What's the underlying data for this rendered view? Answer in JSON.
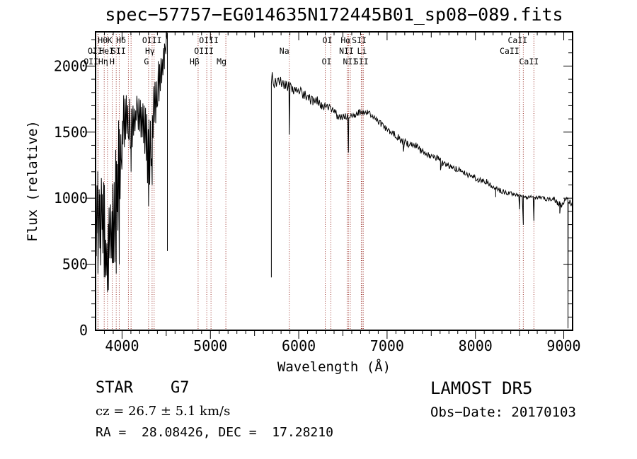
{
  "title": "spec−57757−EG014635N172445B01_sp08−089.fits",
  "colors": {
    "curve": "#000000",
    "axis": "#000000",
    "line_marker": "#9a2f28",
    "background": "#ffffff"
  },
  "footer": {
    "object_type": "STAR    G7",
    "velocity": "cz = 26.7 ± 5.1 km/s",
    "coords": "RA =  28.08426, DEC =  17.28210",
    "survey": "LAMOST DR5",
    "obs_date": "Obs−Date: 20170103"
  },
  "chart_data": {
    "type": "line",
    "title": "spec−57757−EG014635N172445B01_sp08−089.fits",
    "xlabel": "Wavelength (Å)",
    "ylabel": "Flux (relative)",
    "xlim": [
      3700,
      9100
    ],
    "ylim": [
      0,
      2259
    ],
    "xticks": [
      4000,
      5000,
      6000,
      7000,
      8000,
      9000
    ],
    "yticks": [
      0,
      500,
      1000,
      1500,
      2000
    ],
    "minor_x_step": 100,
    "minor_y_step": 100,
    "grid": false,
    "legend": false,
    "spectral_lines": [
      {
        "label": "Hθ",
        "row": 1,
        "wavelength": 3798,
        "dx": -2
      },
      {
        "label": "K",
        "row": 1,
        "wavelength": 3934,
        "dx": -9
      },
      {
        "label": "Hδ",
        "row": 1,
        "wavelength": 4102,
        "dx": -14
      },
      {
        "label": "OIII",
        "row": 1,
        "wavelength": 4363,
        "dx": -3
      },
      {
        "label": "OIII",
        "row": 1,
        "wavelength": 5007,
        "dx": -3
      },
      {
        "label": "OI",
        "row": 1,
        "wavelength": 6364,
        "dx": -5
      },
      {
        "label": "Hα",
        "row": 1,
        "wavelength": 6563,
        "dx": -4
      },
      {
        "label": "SII",
        "row": 1,
        "wavelength": 6717,
        "dx": -4
      },
      {
        "label": "CaII",
        "row": 1,
        "wavelength": 8542,
        "dx": -8
      },
      {
        "label": "OII",
        "row": 2,
        "wavelength": 3727,
        "dx": -4
      },
      {
        "label": "HeI",
        "row": 2,
        "wavelength": 3889,
        "dx": -8
      },
      {
        "label": "SII",
        "row": 2,
        "wavelength": 4072,
        "dx": -14
      },
      {
        "label": "Hγ",
        "row": 2,
        "wavelength": 4340,
        "dx": -3
      },
      {
        "label": "OIII",
        "row": 2,
        "wavelength": 4959,
        "dx": -4
      },
      {
        "label": "Na",
        "row": 2,
        "wavelength": 5893,
        "dx": -7
      },
      {
        "label": "NII",
        "row": 2,
        "wavelength": 6548,
        "dx": -1
      },
      {
        "label": "Li",
        "row": 2,
        "wavelength": 6708,
        "dx": 1
      },
      {
        "label": "CaII",
        "row": 2,
        "wavelength": 8498,
        "dx": -14
      },
      {
        "label": "OII",
        "row": 3,
        "wavelength": 3729,
        "dx": -10
      },
      {
        "label": "Hη",
        "row": 3,
        "wavelength": 3835,
        "dx": -6
      },
      {
        "label": "H",
        "row": 3,
        "wavelength": 3968,
        "dx": -10
      },
      {
        "label": "G",
        "row": 3,
        "wavelength": 4300,
        "dx": -3
      },
      {
        "label": "Hβ",
        "row": 3,
        "wavelength": 4861,
        "dx": -5
      },
      {
        "label": "Mg",
        "row": 3,
        "wavelength": 5175,
        "dx": -6
      },
      {
        "label": "OI",
        "row": 3,
        "wavelength": 6300,
        "dx": 2
      },
      {
        "label": "NII",
        "row": 3,
        "wavelength": 6583,
        "dx": 0
      },
      {
        "label": "SII",
        "row": 3,
        "wavelength": 6731,
        "dx": -3
      },
      {
        "label": "CaII",
        "row": 3,
        "wavelength": 8662,
        "dx": -7
      }
    ],
    "segments": [
      {
        "name": "blue-arm",
        "step": 8,
        "anchors": [
          [
            3700,
            850,
            400
          ],
          [
            3725,
            900,
            380
          ],
          [
            3750,
            800,
            350
          ],
          [
            3775,
            880,
            320
          ],
          [
            3800,
            780,
            330
          ],
          [
            3820,
            560,
            280
          ],
          [
            3845,
            620,
            330
          ],
          [
            3870,
            780,
            350
          ],
          [
            3895,
            820,
            330
          ],
          [
            3920,
            900,
            420
          ],
          [
            3945,
            1020,
            480
          ],
          [
            3970,
            1180,
            470
          ],
          [
            3990,
            1380,
            300
          ],
          [
            4010,
            1560,
            220
          ],
          [
            4040,
            1600,
            180
          ],
          [
            4070,
            1610,
            170
          ],
          [
            4100,
            1520,
            210
          ],
          [
            4130,
            1590,
            180
          ],
          [
            4160,
            1630,
            160
          ],
          [
            4190,
            1610,
            180
          ],
          [
            4220,
            1580,
            200
          ],
          [
            4250,
            1500,
            230
          ],
          [
            4280,
            1400,
            270
          ],
          [
            4305,
            1340,
            280
          ],
          [
            4335,
            1480,
            270
          ],
          [
            4365,
            1680,
            220
          ],
          [
            4395,
            1830,
            180
          ],
          [
            4425,
            1910,
            160
          ],
          [
            4455,
            1990,
            140
          ],
          [
            4480,
            2060,
            120
          ],
          [
            4500,
            2150,
            80
          ],
          [
            4510,
            2235,
            30
          ],
          [
            4513,
            2250,
            0
          ],
          [
            4513,
            600,
            0
          ]
        ]
      },
      {
        "name": "red-arm",
        "step": 12,
        "anchors": [
          [
            5690,
            400,
            0
          ],
          [
            5690,
            1868,
            0
          ],
          [
            5700,
            1900,
            70
          ],
          [
            5735,
            1895,
            60
          ],
          [
            5770,
            1885,
            55
          ],
          [
            5810,
            1870,
            50
          ],
          [
            5850,
            1858,
            48
          ],
          [
            5890,
            1845,
            45
          ],
          [
            5930,
            1832,
            42
          ],
          [
            5970,
            1818,
            40
          ],
          [
            6010,
            1805,
            40
          ],
          [
            6060,
            1780,
            42
          ],
          [
            6110,
            1758,
            40
          ],
          [
            6160,
            1735,
            40
          ],
          [
            6210,
            1740,
            38
          ],
          [
            6260,
            1700,
            36
          ],
          [
            6310,
            1700,
            34
          ],
          [
            6360,
            1672,
            32
          ],
          [
            6410,
            1655,
            30
          ],
          [
            6435,
            1618,
            30
          ],
          [
            6480,
            1612,
            28
          ],
          [
            6530,
            1622,
            26
          ],
          [
            6580,
            1618,
            26
          ],
          [
            6630,
            1630,
            26
          ],
          [
            6680,
            1650,
            25
          ],
          [
            6730,
            1648,
            24
          ],
          [
            6780,
            1648,
            24
          ],
          [
            6830,
            1625,
            24
          ],
          [
            6880,
            1592,
            24
          ],
          [
            6930,
            1562,
            23
          ],
          [
            6980,
            1530,
            23
          ],
          [
            7030,
            1502,
            23
          ],
          [
            7080,
            1488,
            25
          ],
          [
            7130,
            1458,
            26
          ],
          [
            7180,
            1428,
            30
          ],
          [
            7230,
            1415,
            30
          ],
          [
            7280,
            1408,
            26
          ],
          [
            7330,
            1398,
            25
          ],
          [
            7380,
            1362,
            25
          ],
          [
            7430,
            1335,
            25
          ],
          [
            7480,
            1320,
            23
          ],
          [
            7530,
            1308,
            23
          ],
          [
            7580,
            1305,
            25
          ],
          [
            7630,
            1262,
            25
          ],
          [
            7680,
            1248,
            21
          ],
          [
            7730,
            1235,
            21
          ],
          [
            7780,
            1222,
            20
          ],
          [
            7830,
            1210,
            20
          ],
          [
            7880,
            1188,
            20
          ],
          [
            7930,
            1172,
            20
          ],
          [
            7980,
            1158,
            21
          ],
          [
            8030,
            1142,
            22
          ],
          [
            8080,
            1128,
            23
          ],
          [
            8130,
            1122,
            25
          ],
          [
            8180,
            1085,
            25
          ],
          [
            8230,
            1072,
            23
          ],
          [
            8280,
            1058,
            21
          ],
          [
            8330,
            1048,
            20
          ],
          [
            8380,
            1038,
            18
          ],
          [
            8430,
            1030,
            15
          ],
          [
            8480,
            1024,
            12
          ],
          [
            8530,
            1014,
            10
          ],
          [
            8580,
            1002,
            10
          ],
          [
            8630,
            1014,
            10
          ],
          [
            8680,
            1002,
            12
          ],
          [
            8730,
            1006,
            12
          ],
          [
            8780,
            1000,
            15
          ],
          [
            8830,
            988,
            18
          ],
          [
            8880,
            996,
            20
          ],
          [
            8930,
            968,
            24
          ],
          [
            8975,
            945,
            26
          ],
          [
            9010,
            982,
            22
          ],
          [
            9040,
            1000,
            10
          ],
          [
            9046,
            1000,
            0
          ],
          [
            9048,
            15,
            0
          ],
          [
            9050,
            970,
            0
          ],
          [
            9070,
            965,
            25
          ],
          [
            9100,
            945,
            28
          ]
        ]
      }
    ],
    "absorption_dips": [
      [
        3727,
        430
      ],
      [
        3798,
        400
      ],
      [
        3835,
        290
      ],
      [
        3889,
        520
      ],
      [
        3934,
        430
      ],
      [
        3968,
        500
      ],
      [
        4102,
        1200
      ],
      [
        4300,
        940
      ],
      [
        4341,
        1100
      ],
      [
        5893,
        1480
      ],
      [
        6563,
        1345
      ],
      [
        7185,
        1352
      ],
      [
        7605,
        1212
      ],
      [
        8230,
        1008
      ],
      [
        8498,
        915
      ],
      [
        8542,
        798
      ],
      [
        8662,
        828
      ],
      [
        8955,
        885
      ]
    ]
  }
}
